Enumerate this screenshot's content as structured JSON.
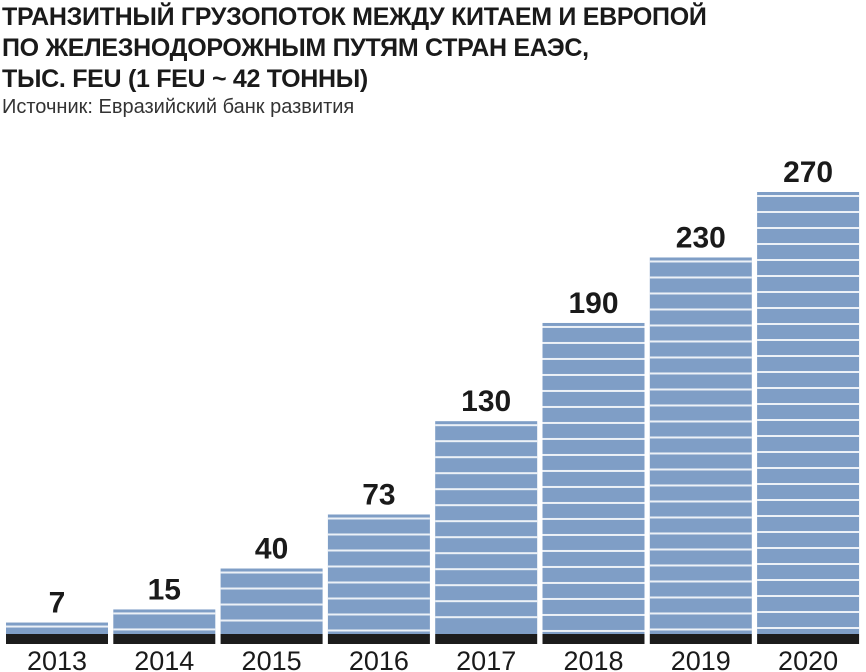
{
  "chart_data": {
    "type": "bar",
    "title_lines": [
      "ТРАНЗИТНЫЙ ГРУЗОПОТОК МЕЖДУ КИТАЕМ И ЕВРОПОЙ",
      "ПО ЖЕЛЕЗНОДОРОЖНЫМ ПУТЯМ СТРАН ЕАЭС,",
      "ТЫС. FEU (1 FEU ~ 42 ТОННЫ)"
    ],
    "source": "Источник: Евразийский банк развития",
    "categories": [
      "2013",
      "2014",
      "2015",
      "2016",
      "2017",
      "2018",
      "2019",
      "2020"
    ],
    "values": [
      7,
      15,
      40,
      73,
      130,
      190,
      230,
      270
    ],
    "xlabel": "",
    "ylabel": "",
    "ylim": [
      0,
      270
    ],
    "grid": false,
    "colors": {
      "bar": "#7f9ec6",
      "stripe": "#ffffff",
      "base": "#1c1c1c"
    }
  }
}
